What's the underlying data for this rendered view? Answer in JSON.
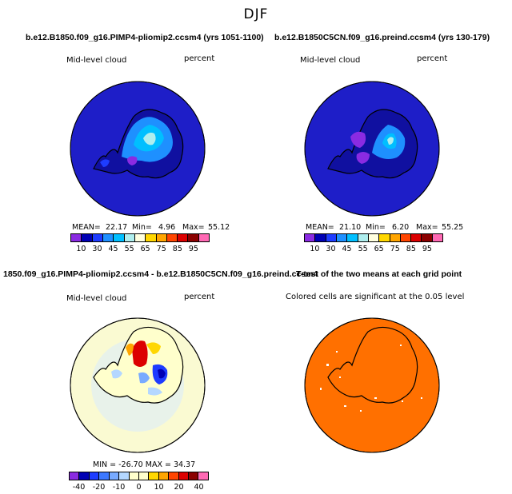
{
  "title": "DJF",
  "panels": [
    {
      "id": "p1",
      "header": "b.e12.B1850.f09_g16.PIMP4-pliomip2.ccsm4 (yrs 1051-1100)",
      "left_label": "Mid-level cloud",
      "right_label": "percent",
      "stats": {
        "mean_label": "MEAN=",
        "mean": "22.17",
        "min_label": "Min=",
        "min": "4.96",
        "max_label": "Max=",
        "max": "55.12"
      },
      "colorbar_ticks": [
        "10",
        "30",
        "45",
        "55",
        "65",
        "75",
        "85",
        "95"
      ]
    },
    {
      "id": "p2",
      "header": "b.e12.B1850C5CN.f09_g16.preind.ccsm4 (yrs 130-179)",
      "left_label": "Mid-level cloud",
      "right_label": "percent",
      "stats": {
        "mean_label": "MEAN=",
        "mean": "21.10",
        "min_label": "Min=",
        "min": "6.20",
        "max_label": "Max=",
        "max": "55.25"
      },
      "colorbar_ticks": [
        "10",
        "30",
        "45",
        "55",
        "65",
        "75",
        "85",
        "95"
      ]
    },
    {
      "id": "p3",
      "header": "1850.f09_g16.PIMP4-pliomip2.ccsm4 - b.e12.B1850C5CN.f09_g16.preind.ccsm4",
      "left_label": "Mid-level cloud",
      "right_label": "percent",
      "stats_line": "MIN = -26.70  MAX = 34.37",
      "colorbar_ticks": [
        "-40",
        "-20",
        "-10",
        "0",
        "10",
        "20",
        "40"
      ]
    },
    {
      "id": "p4",
      "header": "T-test of the two means at each grid point",
      "note": "Colored cells are significant at the 0.05 level"
    }
  ],
  "colors": {
    "abs_scale": [
      "#8a2be2",
      "#0000b4",
      "#1e3cff",
      "#1e90ff",
      "#00bfff",
      "#afeeee",
      "#ffffe0",
      "#ffd700",
      "#ffa500",
      "#ff4500",
      "#dc0000",
      "#8b0000",
      "#ff69b4"
    ],
    "diff_scale": [
      "#8a2be2",
      "#0000b4",
      "#1e3cff",
      "#3c78ff",
      "#78aaff",
      "#b4d7ff",
      "#ffffcc",
      "#ffffcc",
      "#ffd700",
      "#ffa500",
      "#ff4500",
      "#dc0000",
      "#8b0000",
      "#ff69b4"
    ],
    "ocean_abs": "#1e1ec8",
    "ocean_diff": "#fafad2",
    "ttest_fill": "#ff7000"
  }
}
